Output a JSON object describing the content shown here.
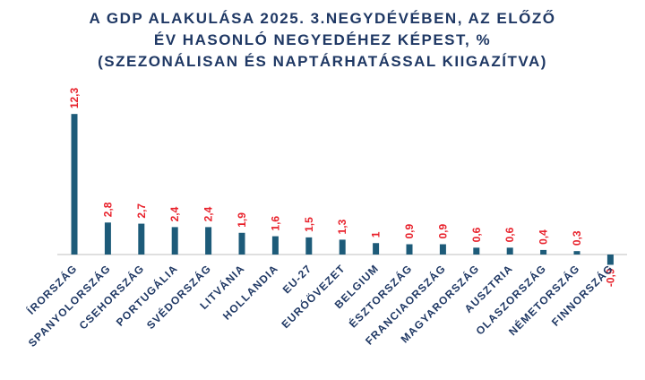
{
  "chart_data": {
    "type": "bar",
    "title": [
      "A GDP ALAKULÁSA 2025. 3.NEGYDÉVÉBEN, AZ ELŐZŐ",
      "ÉV HASONLÓ NEGYEDÉHEZ KÉPEST, %",
      "(SZEZONÁLISAN ÉS NAPTÁRHATÁSSAL KIIGAZÍTVA)"
    ],
    "categories": [
      "ÍRORSZÁG",
      "SPANYOLORSZÁG",
      "CSEHORSZÁG",
      "PORTUGÁLIA",
      "SVÉDORSZÁG",
      "LITVÁNIA",
      "HOLLANDIA",
      "EU-27",
      "EURÓÖVEZET",
      "BELGIUM",
      "ÉSZTORSZÁG",
      "FRANCIAORSZÁG",
      "MAGYARORSZÁG",
      "AUSZTRIA",
      "OLASZORSZÁG",
      "NÉMETORSZÁG",
      "FINNORSZÁG"
    ],
    "values": [
      12.3,
      2.8,
      2.7,
      2.4,
      2.4,
      1.9,
      1.6,
      1.5,
      1.3,
      1,
      0.9,
      0.9,
      0.6,
      0.6,
      0.4,
      0.3,
      -0.9
    ],
    "value_labels": [
      "12,3",
      "2,8",
      "2,7",
      "2,4",
      "2,4",
      "1,9",
      "1,6",
      "1,5",
      "1,3",
      "1",
      "0,9",
      "0,9",
      "0,6",
      "0,6",
      "0,4",
      "0,3",
      "-0,9"
    ],
    "color": "#1d5b79"
  }
}
